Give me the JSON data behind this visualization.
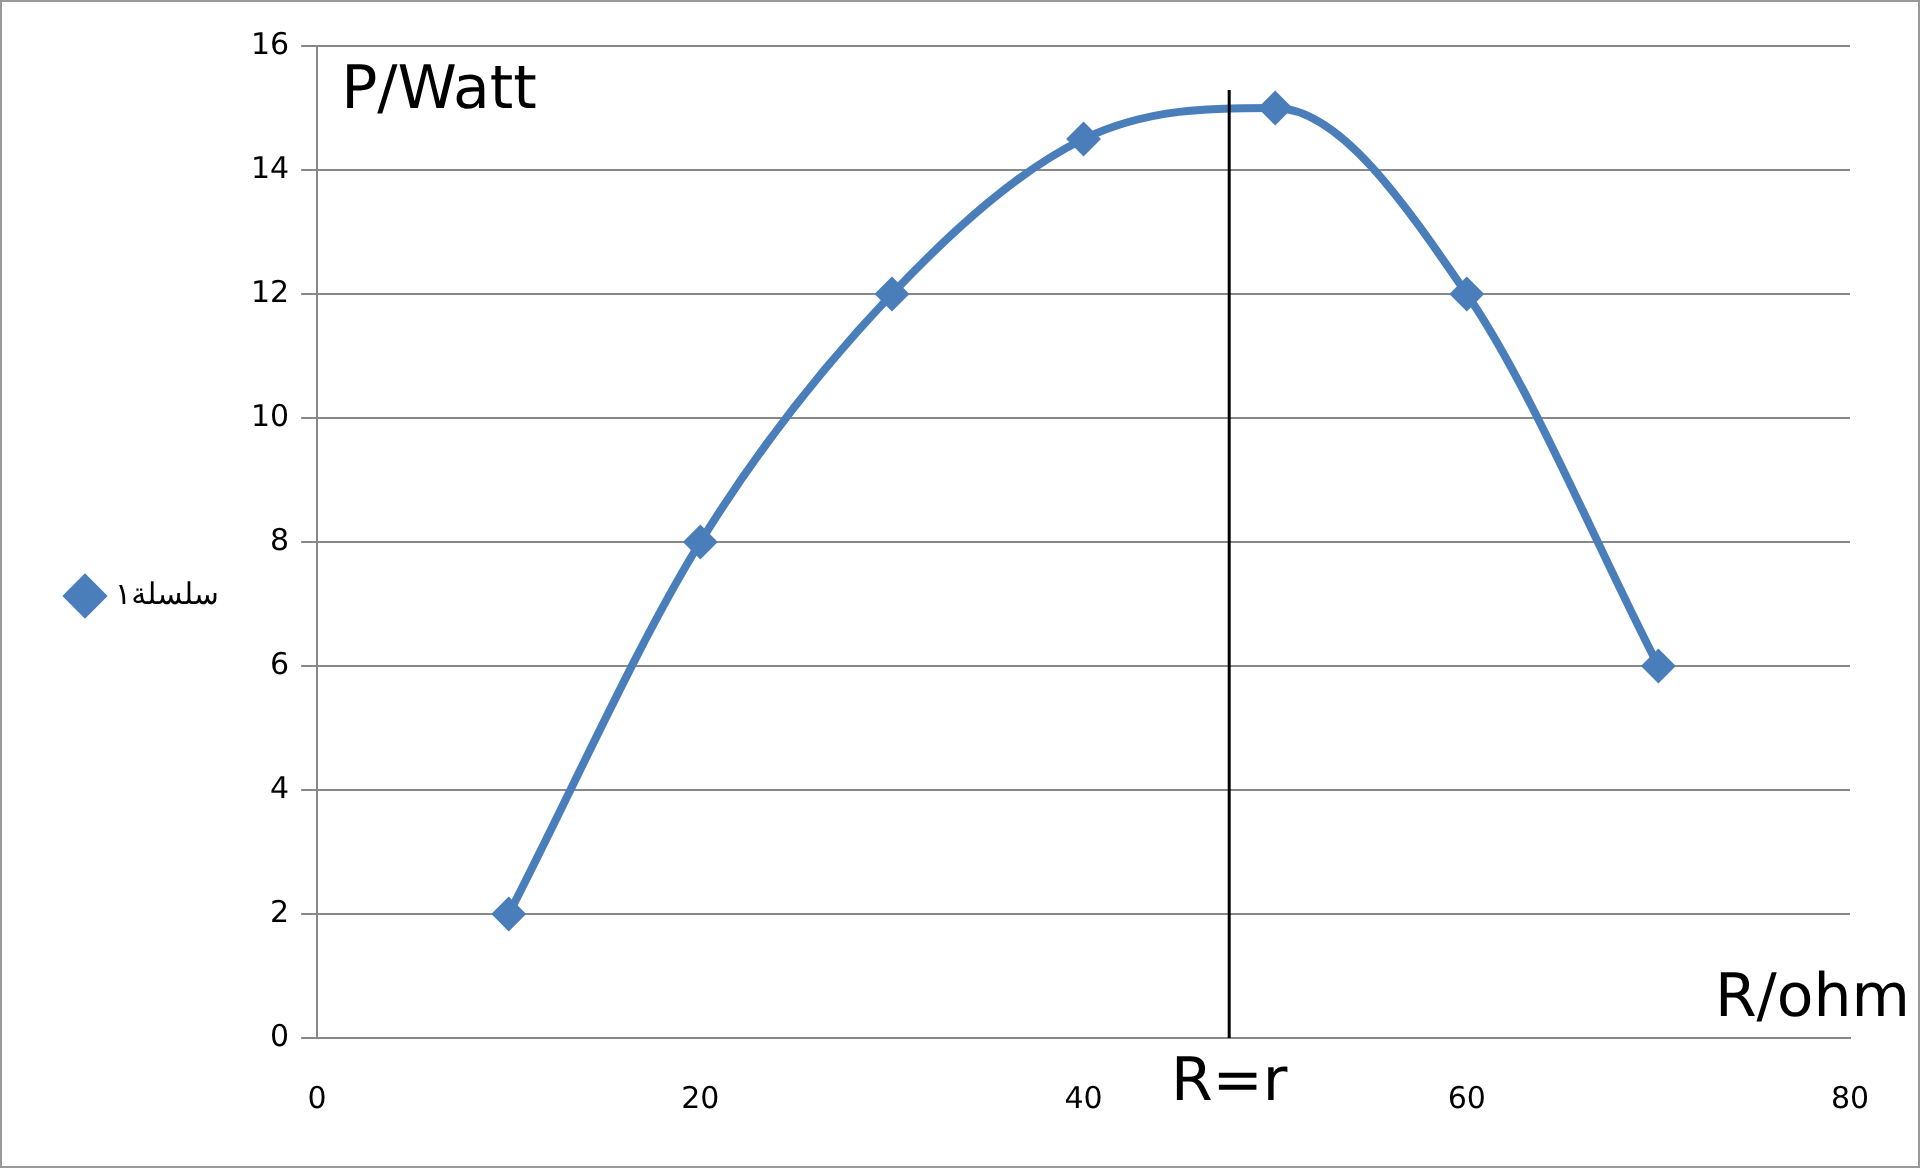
{
  "chart_data": {
    "type": "line",
    "xlabel": "R/ohm",
    "ylabel": "P/Watt",
    "x": [
      10,
      20,
      30,
      40,
      50,
      60,
      70
    ],
    "series": [
      {
        "name": "سلسلة١",
        "color": "#4a7ebb",
        "values": [
          2,
          8,
          12,
          14.5,
          15,
          12,
          6
        ]
      }
    ],
    "xlim": [
      0,
      80
    ],
    "xticks": [
      0,
      20,
      40,
      60,
      80
    ],
    "ylim": [
      0,
      16
    ],
    "yticks": [
      0,
      2,
      4,
      6,
      8,
      10,
      12,
      14,
      16
    ],
    "ref_lines": [
      {
        "axis": "x",
        "value": 47.6,
        "label": "R=r",
        "color": "#000000"
      }
    ],
    "grid": "y",
    "legend": "left",
    "marker": "diamond",
    "line_style": "solid"
  }
}
